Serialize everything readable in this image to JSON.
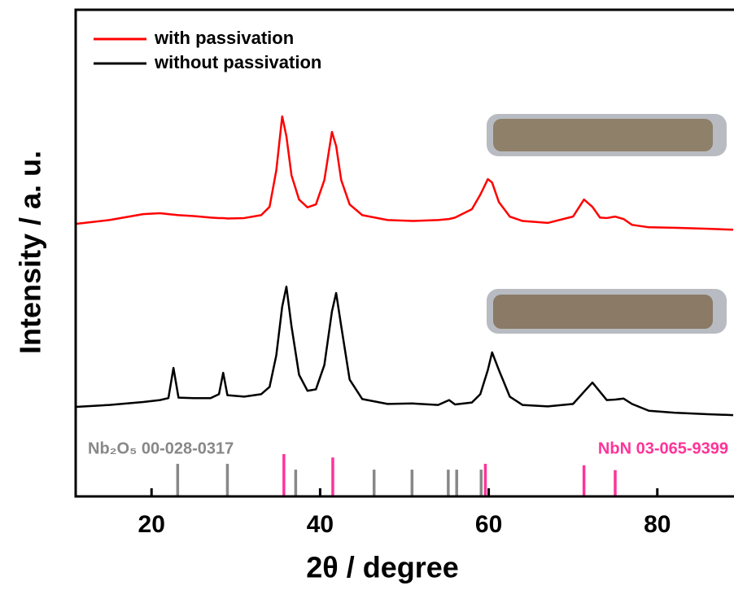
{
  "chart_data": {
    "type": "line",
    "xlabel": "2θ / degree",
    "ylabel": "Intensity / a. u.",
    "xlim": [
      11,
      89
    ],
    "xticks": [
      20,
      40,
      60,
      80
    ],
    "ylim": [
      0,
      100
    ],
    "x": [
      11,
      15,
      19,
      21,
      22,
      22.6,
      23.2,
      25,
      27,
      28,
      28.5,
      29,
      31,
      33,
      34,
      34.8,
      35.5,
      36,
      36.6,
      37.5,
      38.5,
      39.5,
      40.5,
      41.4,
      41.9,
      42.5,
      43.5,
      45,
      48,
      51,
      54,
      55.3,
      56,
      58,
      59,
      59.9,
      60.4,
      61.2,
      62.5,
      64,
      67,
      70,
      71.3,
      72.3,
      73.2,
      74,
      75,
      76,
      77,
      79,
      82,
      86,
      89
    ],
    "series": [
      {
        "name": "with passivation",
        "color": "#ff0000",
        "values": [
          56.0,
          56.8,
          58.0,
          58.2,
          58.0,
          57.9,
          57.8,
          57.6,
          57.3,
          57.2,
          57.2,
          57.1,
          57.2,
          57.8,
          59.5,
          67,
          78.1,
          74,
          66,
          61,
          59.4,
          60,
          65,
          74.9,
          72,
          65,
          60,
          57.8,
          56.8,
          56.6,
          56.8,
          57,
          57.3,
          59,
          62,
          65.2,
          64.5,
          60.5,
          57.5,
          56.6,
          56.2,
          57.5,
          61.0,
          59.5,
          57.3,
          57.2,
          57.5,
          57,
          55.8,
          55.3,
          55.2,
          55.0,
          54.8
        ]
      },
      {
        "name": "without passivation",
        "color": "#000000",
        "values": [
          18.4,
          18.8,
          19.4,
          19.8,
          20.2,
          26.4,
          20.3,
          20.2,
          20.2,
          21,
          25.4,
          20.8,
          20.5,
          21,
          22.5,
          29,
          39,
          43.1,
          35,
          25,
          21.7,
          22,
          27,
          38,
          41.8,
          35,
          24,
          20,
          19,
          19.1,
          18.8,
          19.8,
          18.9,
          19.3,
          21,
          26,
          29.6,
          26,
          20.5,
          18.8,
          18.5,
          19,
          21.5,
          23.4,
          21.5,
          19.8,
          19.9,
          20.1,
          19,
          17.6,
          17.2,
          16.9,
          16.7
        ]
      }
    ],
    "reference_patterns": [
      {
        "name": "Nb₂O₅ 00-028-0317",
        "color": "#888888",
        "positions": [
          23.1,
          29.0,
          37.1,
          46.4,
          50.9,
          55.2,
          56.2,
          59.1
        ],
        "heights": [
          6.7,
          6.7,
          5.5,
          5.5,
          5.5,
          5.5,
          5.5,
          5.5
        ]
      },
      {
        "name": "NbN 03-065-9399",
        "color": "#ff3399",
        "positions": [
          35.7,
          41.5,
          59.6,
          71.3,
          75.0
        ],
        "heights": [
          8.7,
          8.0,
          6.7,
          6.4,
          5.4
        ]
      }
    ],
    "legend": "upper left"
  }
}
